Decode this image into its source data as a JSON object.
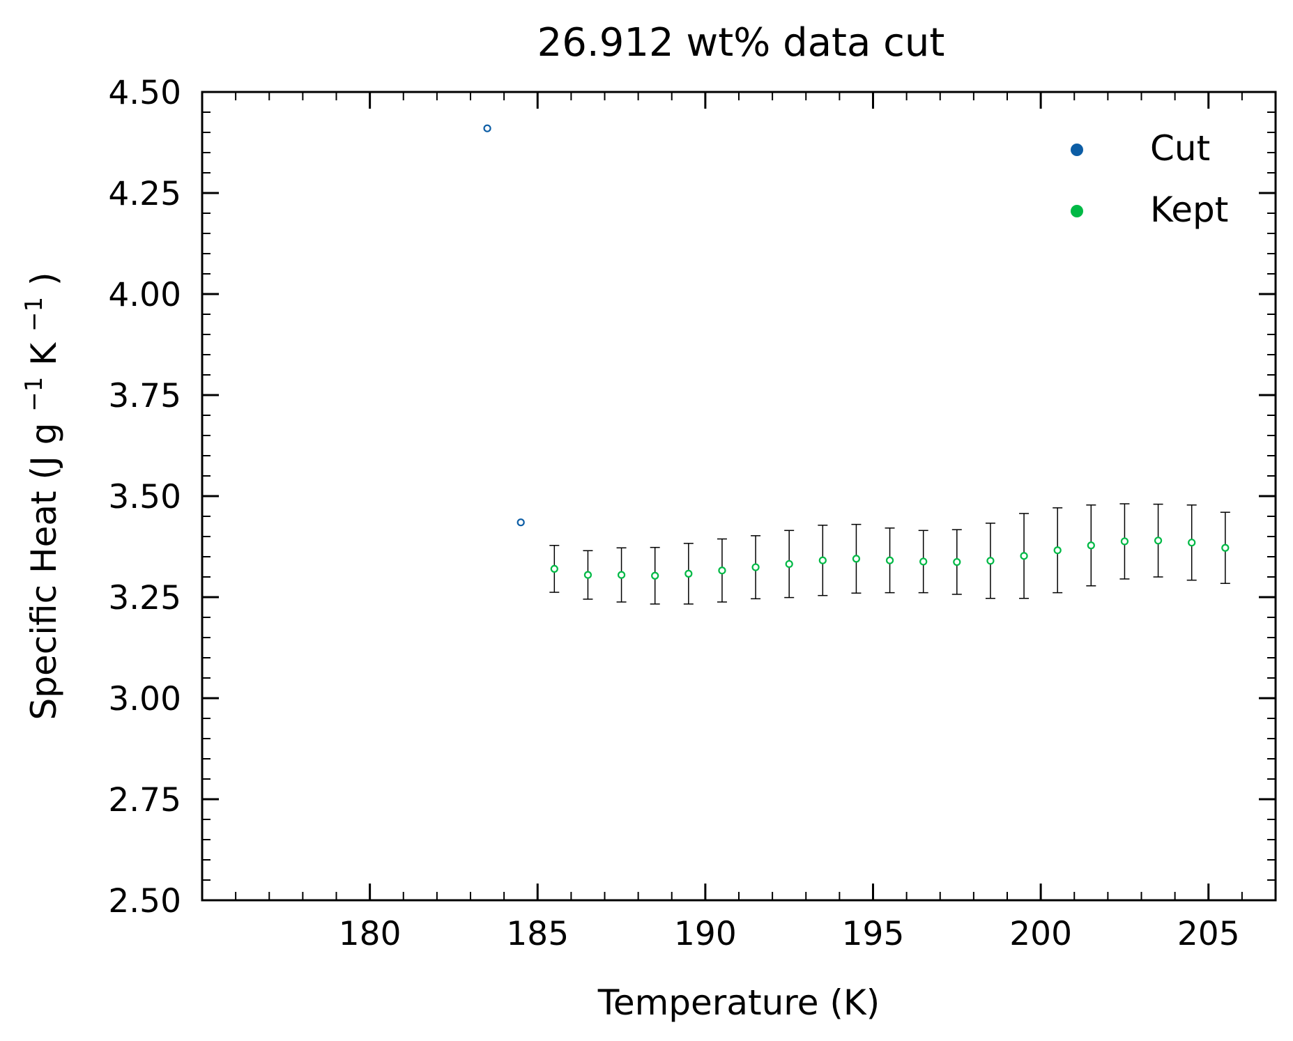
{
  "chart_data": {
    "type": "scatter",
    "title": "26.912 wt% data cut",
    "xlabel": "Temperature (K)",
    "ylabel": {
      "prefix": "Specific Heat (J g",
      "sup1": "−1",
      "mid": " K",
      "sup2": "−1",
      "suffix": ")"
    },
    "xlim": [
      175,
      207
    ],
    "ylim": [
      2.5,
      4.5
    ],
    "x_ticks": [
      180,
      185,
      190,
      195,
      200,
      205
    ],
    "x_tick_labels": [
      "180",
      "185",
      "190",
      "195",
      "200",
      "205"
    ],
    "y_ticks": [
      2.5,
      2.75,
      3.0,
      3.25,
      3.5,
      3.75,
      4.0,
      4.25,
      4.5
    ],
    "y_tick_labels": [
      "2.50",
      "2.75",
      "3.00",
      "3.25",
      "3.50",
      "3.75",
      "4.00",
      "4.25",
      "4.50"
    ],
    "legend_position": "top-right",
    "grid": false,
    "series": [
      {
        "name": "Cut",
        "color": "#0c5da5",
        "points": [
          {
            "x": 183.5,
            "y": 4.41
          },
          {
            "x": 184.5,
            "y": 3.435
          }
        ]
      },
      {
        "name": "Kept",
        "color": "#00b945",
        "points": [
          {
            "x": 185.5,
            "y": 3.32,
            "err": 0.058
          },
          {
            "x": 186.5,
            "y": 3.305,
            "err": 0.06
          },
          {
            "x": 187.5,
            "y": 3.305,
            "err": 0.067
          },
          {
            "x": 188.5,
            "y": 3.303,
            "err": 0.07
          },
          {
            "x": 189.5,
            "y": 3.308,
            "err": 0.075
          },
          {
            "x": 190.5,
            "y": 3.316,
            "err": 0.078
          },
          {
            "x": 191.5,
            "y": 3.324,
            "err": 0.078
          },
          {
            "x": 192.5,
            "y": 3.332,
            "err": 0.083
          },
          {
            "x": 193.5,
            "y": 3.341,
            "err": 0.087
          },
          {
            "x": 194.5,
            "y": 3.345,
            "err": 0.085
          },
          {
            "x": 195.5,
            "y": 3.341,
            "err": 0.08
          },
          {
            "x": 196.5,
            "y": 3.338,
            "err": 0.077
          },
          {
            "x": 197.5,
            "y": 3.337,
            "err": 0.08
          },
          {
            "x": 198.5,
            "y": 3.34,
            "err": 0.093
          },
          {
            "x": 199.5,
            "y": 3.352,
            "err": 0.105
          },
          {
            "x": 200.5,
            "y": 3.366,
            "err": 0.105
          },
          {
            "x": 201.5,
            "y": 3.378,
            "err": 0.1
          },
          {
            "x": 202.5,
            "y": 3.388,
            "err": 0.093
          },
          {
            "x": 203.5,
            "y": 3.39,
            "err": 0.09
          },
          {
            "x": 204.5,
            "y": 3.385,
            "err": 0.093
          },
          {
            "x": 205.5,
            "y": 3.372,
            "err": 0.088
          }
        ]
      }
    ],
    "errorbar_color": "#000000"
  }
}
